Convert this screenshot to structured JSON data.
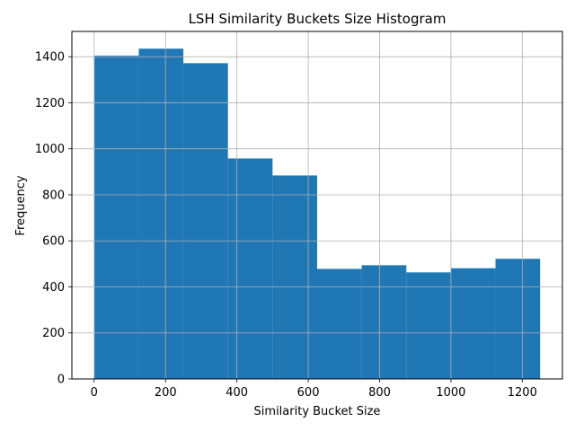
{
  "chart_data": {
    "type": "bar",
    "title": "LSH Similarity Buckets Size Histogram",
    "xlabel": "Similarity Bucket Size",
    "ylabel": "Frequency",
    "bin_edges": [
      0,
      125,
      250,
      375,
      500,
      625,
      750,
      875,
      1000,
      1125,
      1250
    ],
    "values": [
      1405,
      1435,
      1372,
      958,
      884,
      478,
      494,
      463,
      481,
      522
    ],
    "xlim": [
      -62.5,
      1312.5
    ],
    "ylim": [
      0,
      1510
    ],
    "xticks": [
      0,
      200,
      400,
      600,
      800,
      1000,
      1200
    ],
    "yticks": [
      0,
      200,
      400,
      600,
      800,
      1000,
      1200,
      1400
    ],
    "grid": true,
    "bar_color": "#1f77b4"
  }
}
